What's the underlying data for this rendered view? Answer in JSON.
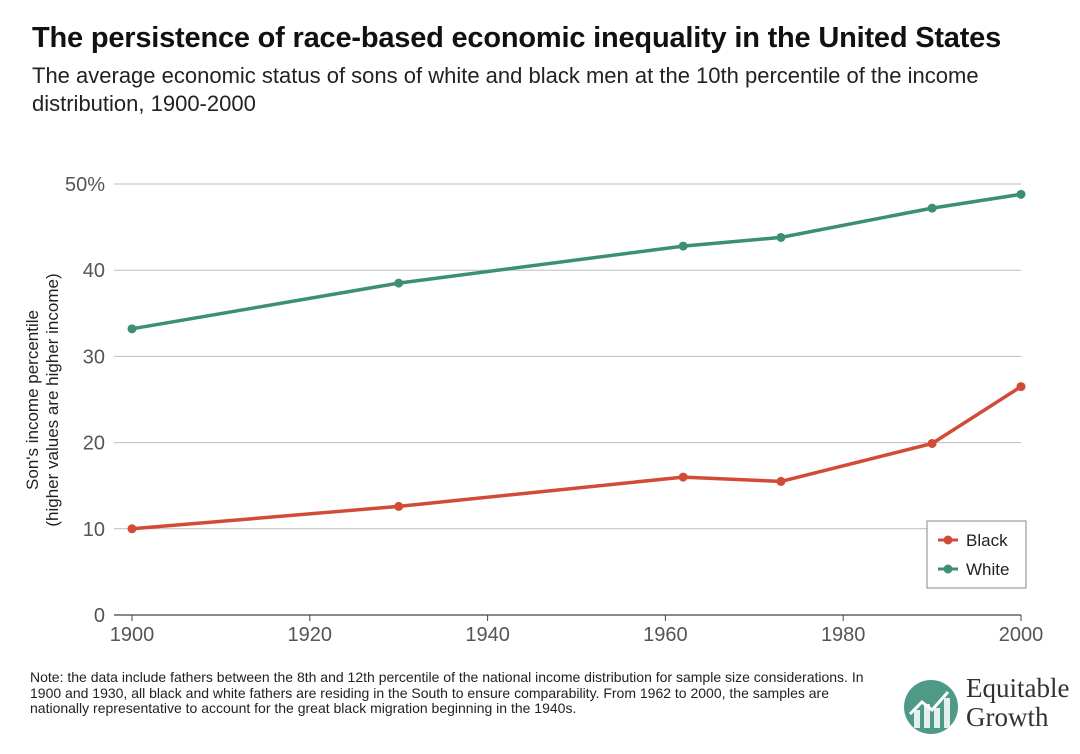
{
  "header": {
    "title": "The persistence of race-based economic inequality in the United States",
    "subtitle": "The average economic status of sons of white and black men at the 10th percentile of the income distribution, 1900-2000"
  },
  "chart_data": {
    "type": "line",
    "ylabel_line1": "Son's income percentile",
    "ylabel_line2": "(higher values are higher income)",
    "xlim": [
      1900,
      2000
    ],
    "ylim": [
      0,
      50
    ],
    "x_ticks": [
      "1900",
      "1920",
      "1940",
      "1960",
      "1980",
      "2000"
    ],
    "y_ticks": [
      "0",
      "10",
      "20",
      "30",
      "40",
      "50%"
    ],
    "grid": "horizontal",
    "legend_position": "bottom-right",
    "series": [
      {
        "name": "Black",
        "color": "#d14b37",
        "points": [
          {
            "x": 1900,
            "y": 10.0
          },
          {
            "x": 1930,
            "y": 12.6
          },
          {
            "x": 1962,
            "y": 16.0
          },
          {
            "x": 1973,
            "y": 15.5
          },
          {
            "x": 1990,
            "y": 19.9
          },
          {
            "x": 2000,
            "y": 26.5
          }
        ]
      },
      {
        "name": "White",
        "color": "#3d8f74",
        "points": [
          {
            "x": 1900,
            "y": 33.2
          },
          {
            "x": 1930,
            "y": 38.5
          },
          {
            "x": 1962,
            "y": 42.8
          },
          {
            "x": 1973,
            "y": 43.8
          },
          {
            "x": 1990,
            "y": 47.2
          },
          {
            "x": 2000,
            "y": 48.8
          }
        ]
      }
    ]
  },
  "footer": {
    "note": "Note: the data include fathers between the 8th and 12th percentile of the national income distribution for sample size considerations. In 1900 and 1930, all black and white fathers are residing in the South to ensure comparability. From 1962 to 2000, the samples are nationally representative to account for the great black migration beginning in the 1940s.",
    "logo_line1": "Equitable",
    "logo_line2": "Growth"
  }
}
